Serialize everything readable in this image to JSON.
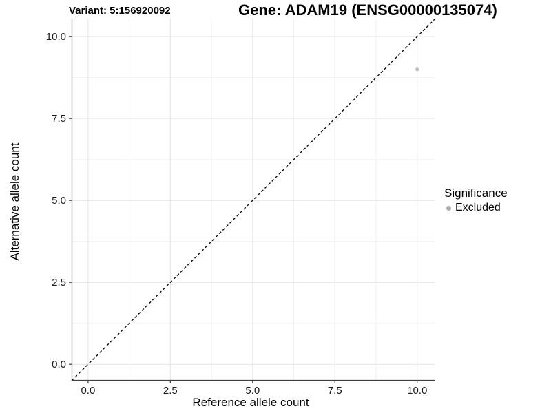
{
  "chart_data": {
    "type": "scatter",
    "title_left": "Variant: 5:156920092",
    "title_right": "Gene: ADAM19 (ENSG00000135074)",
    "xlabel": "Reference allele count",
    "ylabel": "Alternative allele count",
    "xlim": [
      -0.5,
      10.55
    ],
    "ylim": [
      -0.5,
      10.55
    ],
    "x_ticks": [
      0,
      2.5,
      5,
      7.5,
      10
    ],
    "x_tick_labels": [
      "0.0",
      "2.5",
      "5.0",
      "7.5",
      "10.0"
    ],
    "y_ticks": [
      0,
      2.5,
      5,
      7.5,
      10
    ],
    "y_tick_labels": [
      "0.0",
      "2.5",
      "5.0",
      "7.5",
      "10.0"
    ],
    "minor_ticks": [
      1.25,
      3.75,
      6.25,
      8.75
    ],
    "grid": true,
    "legend": {
      "title": "Significance",
      "position": "right",
      "entries": [
        "Excluded"
      ]
    },
    "series": [
      {
        "name": "Excluded",
        "color": "#bdbdbd",
        "points": [
          {
            "x": 10,
            "y": 9
          }
        ]
      }
    ],
    "reference_line": {
      "slope": 1,
      "intercept": 0,
      "style": "dashed",
      "color": "#000000"
    },
    "style": {
      "background": "#ffffff",
      "grid_major": "#e4e4e4",
      "grid_minor": "#f2f2f2",
      "axis_line": "#3f3f3f",
      "tick_mark": "#3f3f3f",
      "tick_label_color": "#1a1a1a",
      "legend_dot_color": "#adadad"
    }
  }
}
